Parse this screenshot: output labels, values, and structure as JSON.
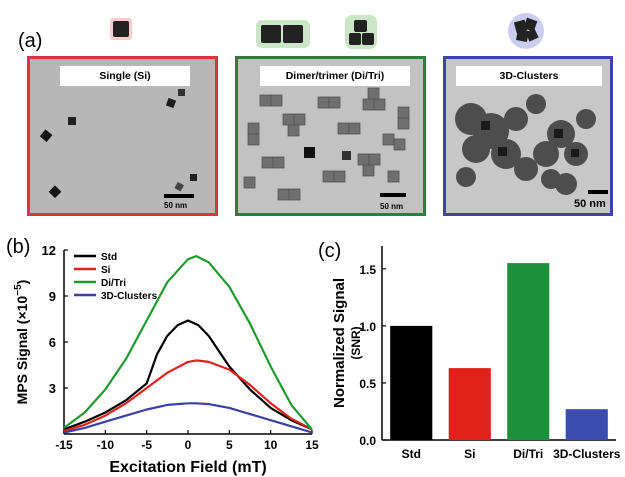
{
  "panel_a": {
    "label": "(a)",
    "images": [
      {
        "title": "Single (Si)",
        "scale": "50 nm",
        "border_color": "#e0323a",
        "icon": "single-cube-icon"
      },
      {
        "title": "Dimer/trimer (Di/Tri)",
        "scale": "50 nm",
        "border_color": "#2e7d3a",
        "icon": "dimer-trimer-cubes-icon"
      },
      {
        "title": "3D-Clusters",
        "scale": "50 nm",
        "border_color": "#3c44a6",
        "icon": "cluster-cubes-icon"
      }
    ]
  },
  "panel_b": {
    "label": "(b)"
  },
  "panel_c": {
    "label": "(c)"
  },
  "chart_data": [
    {
      "type": "line",
      "xlabel": "Excitation Field (mT)",
      "ylabel": "MPS Signal (×10",
      "ylabel_exp": "−5",
      "ylabel_close": ")",
      "xlim": [
        -15,
        15
      ],
      "ylim": [
        0,
        12
      ],
      "xticks": [
        -15,
        -10,
        -5,
        0,
        5,
        10,
        15
      ],
      "yticks": [
        3,
        6,
        9,
        12
      ],
      "legend": "top-left",
      "series": [
        {
          "name": "Std",
          "color": "#000000",
          "x": [
            -15,
            -12.5,
            -10,
            -7.5,
            -5,
            -3.75,
            -2.5,
            -1.25,
            0,
            1.25,
            2.5,
            3.75,
            5,
            7.5,
            10,
            12.5,
            15
          ],
          "y": [
            0.3,
            0.8,
            1.4,
            2.2,
            3.3,
            5.2,
            6.4,
            7.1,
            7.4,
            7.1,
            6.4,
            5.4,
            4.4,
            2.9,
            1.7,
            0.9,
            0.3
          ]
        },
        {
          "name": "Si",
          "color": "#e0201b",
          "x": [
            -15,
            -12.5,
            -10,
            -7.5,
            -5,
            -2.5,
            0,
            1,
            2.5,
            5,
            7.5,
            10,
            12.5,
            15
          ],
          "y": [
            0.2,
            0.6,
            1.2,
            2.0,
            3.0,
            4.0,
            4.7,
            4.8,
            4.7,
            4.2,
            3.2,
            2.0,
            1.0,
            0.3
          ]
        },
        {
          "name": "Di/Tri",
          "color": "#1e9a2e",
          "x": [
            -15,
            -12.5,
            -10,
            -7.5,
            -5,
            -2.5,
            0,
            1,
            2.5,
            5,
            7.5,
            10,
            12.5,
            15
          ],
          "y": [
            0.4,
            1.4,
            2.9,
            4.9,
            7.4,
            9.9,
            11.4,
            11.6,
            11.2,
            9.6,
            7.2,
            4.4,
            1.9,
            0.3
          ]
        },
        {
          "name": "3D-Clusters",
          "color": "#3c3fa6",
          "x": [
            -15,
            -12.5,
            -10,
            -7.5,
            -5,
            -2.5,
            0,
            1,
            2.5,
            5,
            7.5,
            10,
            12.5,
            15
          ],
          "y": [
            0.1,
            0.4,
            0.8,
            1.2,
            1.6,
            1.9,
            2.0,
            2.0,
            1.95,
            1.7,
            1.3,
            0.9,
            0.5,
            0.1
          ]
        }
      ]
    },
    {
      "type": "bar",
      "ylabel": "Normalized Signal",
      "ylabel2": "(SNR)",
      "ylim": [
        0,
        1.7
      ],
      "yticks": [
        0.0,
        0.5,
        1.0,
        1.5
      ],
      "categories": [
        "Std",
        "Si",
        "Di/Tri",
        "3D-Clusters"
      ],
      "values": [
        1.0,
        0.63,
        1.55,
        0.27
      ],
      "colors": [
        "#000000",
        "#e0201b",
        "#1e8f3c",
        "#3b4bb0"
      ]
    }
  ]
}
